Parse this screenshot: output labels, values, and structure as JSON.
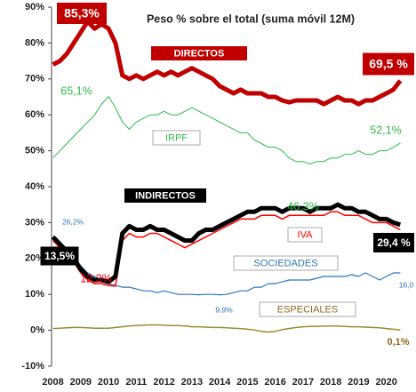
{
  "chart_data": {
    "type": "line",
    "title": "Peso % sobre el total (suma móvil 12M)",
    "x": [
      2008,
      2008.25,
      2008.5,
      2008.75,
      2009,
      2009.25,
      2009.5,
      2009.75,
      2010,
      2010.25,
      2010.5,
      2010.75,
      2011,
      2011.25,
      2011.5,
      2011.75,
      2012,
      2012.25,
      2012.5,
      2012.75,
      2013,
      2013.25,
      2013.5,
      2013.75,
      2014,
      2014.25,
      2014.5,
      2014.75,
      2015,
      2015.25,
      2015.5,
      2015.75,
      2016,
      2016.25,
      2016.5,
      2016.75,
      2017,
      2017.25,
      2017.5,
      2017.75,
      2018,
      2018.25,
      2018.5,
      2018.75,
      2019,
      2019.25,
      2019.5,
      2019.75,
      2020,
      2020.25,
      2020.5
    ],
    "xlim": [
      2007.95,
      2020.65
    ],
    "xticks": [
      2008,
      2009,
      2010,
      2011,
      2012,
      2013,
      2014,
      2015,
      2016,
      2017,
      2018,
      2019,
      2020
    ],
    "ylim": [
      -10,
      90
    ],
    "yticks": [
      {
        "value": -10,
        "label": "-10%"
      },
      {
        "value": 0,
        "label": "0%"
      },
      {
        "value": 10,
        "label": "10%"
      },
      {
        "value": 20,
        "label": "20%"
      },
      {
        "value": 30,
        "label": "30%"
      },
      {
        "value": 40,
        "label": "40%"
      },
      {
        "value": 50,
        "label": "50%"
      },
      {
        "value": 60,
        "label": "60%"
      },
      {
        "value": 70,
        "label": "70%"
      },
      {
        "value": 80,
        "label": "80%"
      },
      {
        "value": 90,
        "label": "90%"
      }
    ],
    "series": [
      {
        "name": "DIRECTOS",
        "color": "#c00000",
        "values": [
          74,
          75,
          77,
          80,
          83,
          86,
          84,
          85.3,
          84,
          80,
          71,
          70,
          71,
          70,
          71,
          72,
          71,
          72,
          71,
          72,
          73,
          72,
          71,
          70,
          68,
          67,
          66,
          67,
          66,
          66,
          66,
          65,
          65,
          64,
          63.5,
          64,
          64,
          64,
          64,
          63,
          64,
          65,
          64,
          64,
          63,
          64,
          64,
          65,
          66,
          67,
          69.5
        ]
      },
      {
        "name": "IRPF",
        "color": "#2eb84a",
        "values": [
          48,
          50,
          52,
          54,
          56,
          58,
          60,
          63,
          65.1,
          62,
          58,
          56,
          58,
          59,
          60,
          60,
          61,
          60,
          60,
          61,
          62,
          61,
          60,
          59,
          58,
          57,
          56,
          55,
          55,
          53,
          52,
          51,
          51,
          50,
          48,
          47,
          47,
          46.3,
          47,
          47,
          48,
          48,
          49,
          49,
          50,
          49,
          49,
          50,
          50,
          51,
          52.1
        ]
      },
      {
        "name": "INDIRECTOS",
        "color": "#000000",
        "values": [
          26,
          24,
          22,
          20,
          17,
          15,
          14,
          14,
          13.5,
          15,
          27,
          29,
          28,
          28,
          29,
          28,
          28,
          27,
          26,
          25,
          25,
          27,
          28,
          28,
          29,
          30,
          31,
          32,
          33,
          33,
          34,
          34,
          34,
          33,
          34,
          34,
          34,
          33,
          34,
          34,
          34,
          35,
          34,
          34,
          33,
          33,
          32,
          31,
          31,
          30,
          29.4
        ]
      },
      {
        "name": "IVA",
        "color": "#ff0000",
        "values": [
          25,
          23,
          21,
          19,
          16,
          14,
          13,
          13,
          12.5,
          12.3,
          25,
          27,
          26,
          26,
          27,
          27,
          26,
          25,
          24,
          23,
          24,
          25,
          26,
          27,
          28,
          29,
          30,
          31,
          31,
          31,
          32,
          32,
          32,
          31,
          32,
          32,
          32,
          32,
          32,
          32,
          33,
          33,
          32,
          32,
          32,
          31,
          30,
          30,
          30,
          29,
          28
        ]
      },
      {
        "name": "SOCIEDADES",
        "color": "#2e75b6",
        "values": [
          26.2,
          24,
          22,
          20,
          18,
          16,
          15,
          14,
          13,
          12.5,
          12,
          12,
          11.5,
          11,
          11,
          10.5,
          11,
          10.5,
          10,
          10,
          10,
          9.9,
          10,
          10,
          9.9,
          10,
          10.5,
          11,
          11,
          12,
          12,
          13,
          13,
          13.5,
          14,
          14,
          14,
          14,
          14.5,
          15,
          15,
          15,
          15,
          15.5,
          15,
          16,
          15,
          14,
          15,
          16,
          16.0
        ]
      },
      {
        "name": "ESPECIALES",
        "color": "#9c8a2e",
        "values": [
          0.5,
          0.6,
          0.7,
          0.8,
          0.8,
          0.7,
          0.6,
          0.6,
          0.6,
          0.8,
          1,
          1.2,
          1.3,
          1.4,
          1.5,
          1.5,
          1.4,
          1.3,
          1.3,
          1.2,
          1,
          1,
          0.9,
          0.8,
          0.8,
          0.7,
          0.6,
          0.5,
          0.3,
          0.1,
          -0.3,
          -0.5,
          -0.3,
          0.2,
          0.5,
          0.8,
          1,
          1.1,
          1.1,
          1.2,
          1.2,
          1.2,
          1.1,
          1,
          1,
          0.9,
          0.8,
          0.7,
          0.5,
          0.3,
          0.1
        ]
      }
    ],
    "annotations": [
      "85,3%",
      "69,5 %",
      "65,1%",
      "52,1%",
      "46,3%",
      "26,2%",
      "29,4 %",
      "12,3%",
      "13,5%",
      "9,9%",
      "16,0",
      "0,1%"
    ]
  }
}
